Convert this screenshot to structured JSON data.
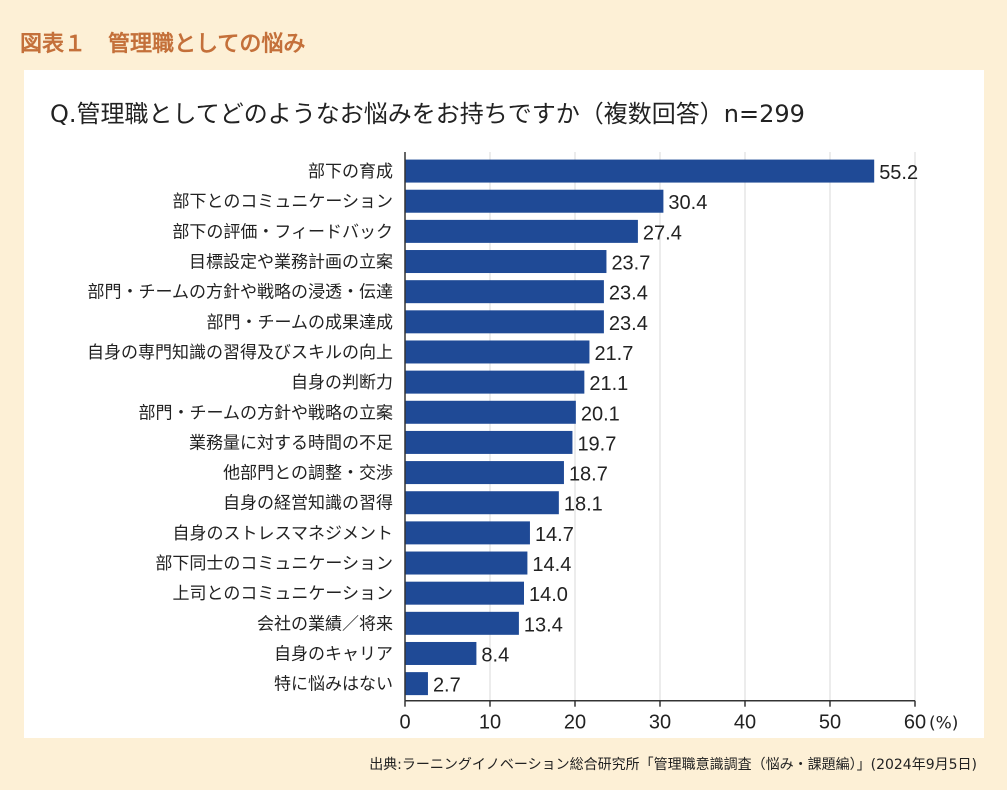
{
  "figure_label": "図表１　管理職としての悩み",
  "source": "出典:ラーニングイノベーション総合研究所「管理職意識調査（悩み・課題編）」(2024年9月5日)",
  "colors": {
    "background": "#fdf0d6",
    "panel": "#ffffff",
    "bar": "#1f4a96",
    "label_accent": "#c4703a"
  },
  "chart_data": {
    "type": "bar",
    "orientation": "horizontal",
    "title": "Q.管理職としてどのようなお悩みをお持ちですか（複数回答）n=299",
    "unit_label": "(%)",
    "xlim": [
      0,
      60
    ],
    "xticks": [
      0,
      10,
      20,
      30,
      40,
      50,
      60
    ],
    "grid": true,
    "categories": [
      "部下の育成",
      "部下とのコミュニケーション",
      "部下の評価・フィードバック",
      "目標設定や業務計画の立案",
      "部門・チームの方針や戦略の浸透・伝達",
      "部門・チームの成果達成",
      "自身の専門知識の習得及びスキルの向上",
      "自身の判断力",
      "部門・チームの方針や戦略の立案",
      "業務量に対する時間の不足",
      "他部門との調整・交渉",
      "自身の経営知識の習得",
      "自身のストレスマネジメント",
      "部下同士のコミュニケーション",
      "上司とのコミュニケーション",
      "会社の業績／将来",
      "自身のキャリア",
      "特に悩みはない"
    ],
    "values": [
      55.2,
      30.4,
      27.4,
      23.7,
      23.4,
      23.4,
      21.7,
      21.1,
      20.1,
      19.7,
      18.7,
      18.1,
      14.7,
      14.4,
      14.0,
      13.4,
      8.4,
      2.7
    ],
    "value_labels": [
      "55.2",
      "30.4",
      "27.4",
      "23.7",
      "23.4",
      "23.4",
      "21.7",
      "21.1",
      "20.1",
      "19.7",
      "18.7",
      "18.1",
      "14.7",
      "14.4",
      "14.0",
      "13.4",
      "8.4",
      "2.7"
    ]
  }
}
